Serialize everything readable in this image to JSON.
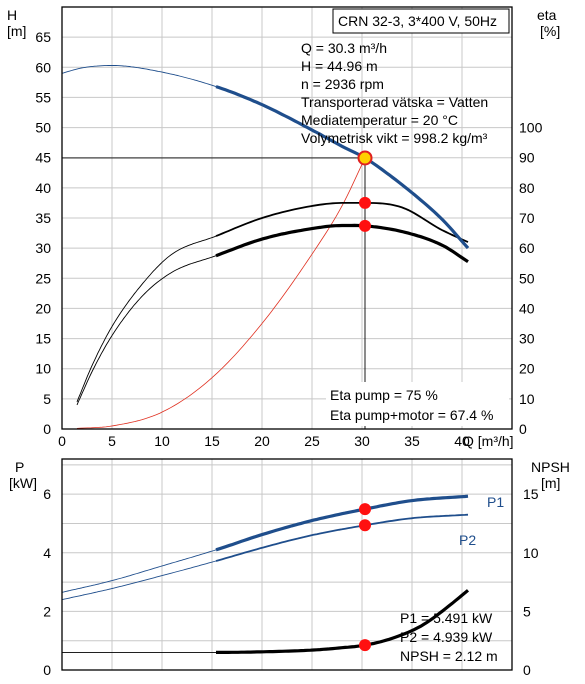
{
  "chart_data": [
    {
      "type": "line",
      "title": "CRN 32-3, 3*400 V, 50Hz",
      "left_axis": {
        "label": "H",
        "unit": "[m]",
        "range": [
          0,
          70
        ],
        "ticks": [
          0,
          5,
          10,
          15,
          20,
          25,
          30,
          35,
          40,
          45,
          50,
          55,
          60,
          65
        ]
      },
      "right_axis": {
        "label": "eta",
        "unit": "[%]",
        "range": [
          0,
          140
        ],
        "ticks": [
          0,
          10,
          20,
          30,
          40,
          50,
          60,
          70,
          80,
          90,
          100
        ]
      },
      "x_axis": {
        "label": "Q [m³/h]",
        "range": [
          0,
          45
        ],
        "ticks": [
          0,
          5,
          10,
          15,
          20,
          25,
          30,
          35,
          40
        ]
      },
      "grid": true,
      "series": [
        {
          "key": "head",
          "axis": "left",
          "color": "#1f4e8c",
          "x": [
            0,
            2,
            5,
            10,
            15.4,
            20,
            25,
            28,
            30.3,
            33,
            36,
            38,
            40.6
          ],
          "y": [
            59.0,
            59.9,
            60.3,
            59.2,
            56.8,
            53.8,
            49.6,
            46.9,
            44.96,
            41.8,
            37.8,
            34.8,
            30.0
          ]
        },
        {
          "key": "eta_pump",
          "axis": "right",
          "color": "#000000",
          "x": [
            1.5,
            3,
            5,
            8,
            11,
            15.4,
            20,
            25,
            28,
            30.3,
            34,
            38,
            40.6
          ],
          "y": [
            9,
            21,
            34,
            48,
            58,
            64,
            70,
            74,
            75,
            75,
            73.5,
            66,
            62
          ]
        },
        {
          "key": "eta_pump_motor",
          "axis": "right",
          "color": "#000000",
          "x": [
            1.5,
            3,
            5,
            8,
            11,
            15.4,
            20,
            25,
            28,
            30.3,
            34,
            38,
            40.6
          ],
          "y": [
            8,
            19,
            31,
            44,
            52,
            57.5,
            63,
            66.5,
            67.5,
            67.4,
            65.5,
            61,
            55.5
          ]
        },
        {
          "key": "system_curve",
          "axis": "left",
          "color": "#e03020",
          "x": [
            1.5,
            5,
            10,
            15,
            20,
            25,
            28,
            30.3
          ],
          "y": [
            0.1,
            0.5,
            2.8,
            8.5,
            17.5,
            29,
            37,
            44.96
          ]
        }
      ],
      "operating_point": {
        "Q": 30.3,
        "H": 44.96,
        "eta_pump": 75,
        "eta_pump_motor": 67.4
      },
      "info_lines": [
        "Q = 30.3 m³/h",
        "H = 44.96 m",
        "n = 2936 rpm",
        "Transporterad vätska = Vatten",
        "Mediatemperatur = 20 °C",
        "Volymetrisk vikt = 998.2 kg/m³"
      ],
      "eta_info_lines": [
        "Eta pump = 75 %",
        "Eta pump+motor = 67.4 %"
      ]
    },
    {
      "type": "line",
      "left_axis": {
        "label": "P",
        "unit": "[kW]",
        "range": [
          0,
          7.2
        ],
        "ticks": [
          0,
          2,
          4,
          6
        ]
      },
      "right_axis": {
        "label": "NPSH",
        "unit": "[m]",
        "range": [
          0,
          18
        ],
        "ticks": [
          0,
          5,
          10,
          15
        ]
      },
      "x_axis": {
        "range": [
          0,
          45
        ]
      },
      "grid": true,
      "series": [
        {
          "key": "P1",
          "name": "P1",
          "axis": "left",
          "color": "#1f4e8c",
          "x": [
            0,
            5,
            10,
            15.4,
            20,
            25,
            30.3,
            35,
            40.6
          ],
          "y": [
            2.65,
            3.05,
            3.55,
            4.1,
            4.62,
            5.1,
            5.491,
            5.78,
            5.93
          ]
        },
        {
          "key": "P2",
          "name": "P2",
          "axis": "left",
          "color": "#1f4e8c",
          "x": [
            0,
            5,
            10,
            15.4,
            20,
            25,
            30.3,
            35,
            40.6
          ],
          "y": [
            2.4,
            2.78,
            3.22,
            3.72,
            4.17,
            4.6,
            4.939,
            5.18,
            5.3
          ]
        },
        {
          "key": "NPSH",
          "axis": "right",
          "color": "#000000",
          "x": [
            0,
            10,
            15.4,
            20,
            25,
            28,
            30.3,
            33,
            36,
            38,
            40.6
          ],
          "y": [
            1.5,
            1.5,
            1.5,
            1.55,
            1.7,
            1.9,
            2.12,
            2.7,
            3.8,
            5.0,
            6.8
          ]
        }
      ],
      "operating_point": {
        "Q": 30.3,
        "P1": 5.491,
        "P2": 4.939,
        "NPSH": 2.12
      },
      "info_lines": [
        "P1 = 5.491 kW",
        "P2 = 4.939 kW",
        "NPSH = 2.12 m"
      ]
    }
  ]
}
